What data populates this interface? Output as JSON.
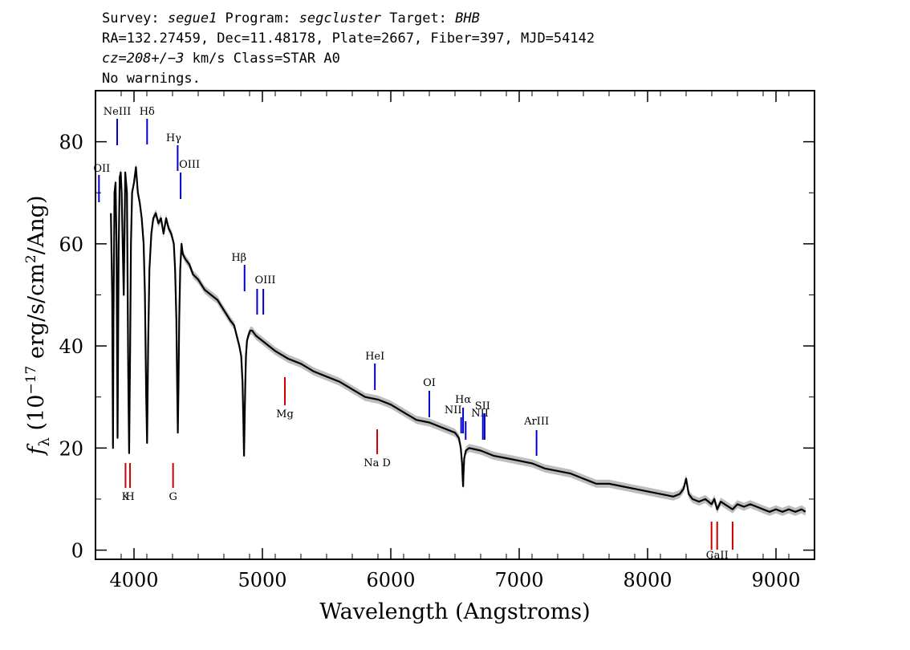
{
  "header": {
    "line1": [
      {
        "t": "Survey: ",
        "i": false
      },
      {
        "t": "segue1",
        "i": true
      },
      {
        "t": " Program: ",
        "i": false
      },
      {
        "t": "segcluster",
        "i": true
      },
      {
        "t": " Target: ",
        "i": false
      },
      {
        "t": "BHB",
        "i": true
      }
    ],
    "line2": "RA=132.27459, Dec=11.48178, Plate=2667, Fiber=397, MJD=54142",
    "line3": [
      {
        "t": "cz=208+/−3",
        "i": true
      },
      {
        "t": " km/s Class=STAR A0",
        "i": false
      }
    ],
    "line4": "No warnings."
  },
  "colors": {
    "spectrum": "#000000",
    "error_band": "#bdbdbd",
    "emission_marker": "#0000cc",
    "absorption_marker": "#cc0000"
  },
  "chart_data": {
    "type": "line",
    "xlabel": "Wavelength (Angstroms)",
    "ylabel": "f_λ (10^-17 erg/s/cm^2/Ang)",
    "xlim": [
      3700,
      9300
    ],
    "ylim": [
      -1.8,
      90
    ],
    "x_ticks": [
      4000,
      5000,
      6000,
      7000,
      8000,
      9000
    ],
    "y_ticks": [
      0,
      20,
      40,
      60,
      80
    ],
    "grid": false,
    "series": [
      {
        "x": [
          3820,
          3830,
          3836,
          3840,
          3848,
          3856,
          3864,
          3872,
          3880,
          3889,
          3896,
          3904,
          3912,
          3920,
          3932,
          3945,
          3955,
          3962,
          3970,
          3976,
          3985,
          4000,
          4015,
          4030,
          4045,
          4060,
          4075,
          4085,
          4095,
          4102,
          4110,
          4120,
          4135,
          4150,
          4170,
          4190,
          4210,
          4230,
          4250,
          4270,
          4290,
          4310,
          4320,
          4330,
          4336,
          4341,
          4346,
          4352,
          4360,
          4370,
          4380,
          4400,
          4430,
          4460,
          4500,
          4550,
          4600,
          4650,
          4700,
          4750,
          4780,
          4800,
          4820,
          4835,
          4845,
          4852,
          4857,
          4861,
          4866,
          4872,
          4880,
          4890,
          4905,
          4920,
          4950,
          5000,
          5100,
          5200,
          5300,
          5400,
          5500,
          5600,
          5700,
          5800,
          5900,
          6000,
          6100,
          6200,
          6300,
          6400,
          6500,
          6530,
          6545,
          6555,
          6560,
          6563,
          6566,
          6572,
          6585,
          6610,
          6700,
          6800,
          6900,
          7000,
          7100,
          7200,
          7300,
          7400,
          7500,
          7600,
          7700,
          7800,
          7900,
          8000,
          8100,
          8200,
          8250,
          8280,
          8300,
          8320,
          8350,
          8400,
          8450,
          8498,
          8520,
          8542,
          8570,
          8600,
          8662,
          8700,
          8750,
          8800,
          8850,
          8900,
          8950,
          9000,
          9050,
          9100,
          9150,
          9200,
          9230
        ],
        "y": [
          66,
          50,
          20,
          45,
          70,
          72,
          60,
          22,
          58,
          73,
          74,
          70,
          60,
          50,
          74,
          70,
          35,
          19,
          40,
          60,
          70,
          72,
          75,
          70,
          68,
          65,
          60,
          50,
          30,
          21,
          40,
          55,
          62,
          65,
          66,
          64,
          65,
          62,
          65,
          63,
          62,
          60,
          55,
          45,
          32,
          23,
          32,
          45,
          55,
          60,
          58,
          57,
          56,
          54,
          53,
          51,
          50,
          49,
          47,
          45,
          44,
          42,
          40,
          38,
          33,
          25,
          18.5,
          25,
          32,
          38,
          41,
          42,
          43,
          43,
          42,
          41,
          39,
          37.5,
          36.5,
          35,
          34,
          33,
          31.5,
          30,
          29.5,
          28.5,
          27,
          25.5,
          25,
          24,
          23,
          22,
          20,
          17,
          14,
          12.5,
          15,
          18,
          19.5,
          20,
          19.5,
          18.5,
          18,
          17.5,
          17,
          16,
          15.5,
          15,
          14,
          13,
          13,
          12.5,
          12,
          11.5,
          11,
          10.5,
          11,
          12,
          14,
          11,
          10,
          9.5,
          10,
          9,
          10,
          8,
          9.5,
          9,
          8,
          9,
          8.5,
          9,
          8.5,
          8,
          7.5,
          8,
          7.5,
          8,
          7.5,
          8,
          7.5
        ]
      }
    ],
    "line_markers": [
      {
        "label": "OII",
        "wavelength": 3727,
        "type": "emission"
      },
      {
        "label": "NeIII",
        "wavelength": 3869,
        "type": "emission"
      },
      {
        "label": "Hδ",
        "wavelength": 4102,
        "type": "emission"
      },
      {
        "label": "Hγ",
        "wavelength": 4340,
        "type": "emission"
      },
      {
        "label": "OIII",
        "wavelength": 4363,
        "type": "emission"
      },
      {
        "label": "Hβ",
        "wavelength": 4861,
        "type": "emission"
      },
      {
        "label": "OIII",
        "wavelength": 4959,
        "type": "emission"
      },
      {
        "label": "",
        "wavelength": 5007,
        "type": "emission"
      },
      {
        "label": "HeI",
        "wavelength": 5876,
        "type": "emission"
      },
      {
        "label": "OI",
        "wavelength": 6300,
        "type": "emission"
      },
      {
        "label": "NII",
        "wavelength": 6548,
        "type": "emission"
      },
      {
        "label": "Hα",
        "wavelength": 6563,
        "type": "emission"
      },
      {
        "label": "NII",
        "wavelength": 6583,
        "type": "emission"
      },
      {
        "label": "SII",
        "wavelength": 6717,
        "type": "emission"
      },
      {
        "label": "",
        "wavelength": 6731,
        "type": "emission"
      },
      {
        "label": "ArIII",
        "wavelength": 7135,
        "type": "emission"
      },
      {
        "label": "K",
        "wavelength": 3934,
        "type": "absorption"
      },
      {
        "label": "H",
        "wavelength": 3969,
        "type": "absorption"
      },
      {
        "label": "G",
        "wavelength": 4304,
        "type": "absorption"
      },
      {
        "label": "Mg",
        "wavelength": 5175,
        "type": "absorption"
      },
      {
        "label": "Na D",
        "wavelength": 5894,
        "type": "absorption"
      },
      {
        "label": "",
        "wavelength": 8498,
        "type": "absorption"
      },
      {
        "label": "CaII",
        "wavelength": 8542,
        "type": "absorption"
      },
      {
        "label": "",
        "wavelength": 8662,
        "type": "absorption"
      }
    ]
  }
}
